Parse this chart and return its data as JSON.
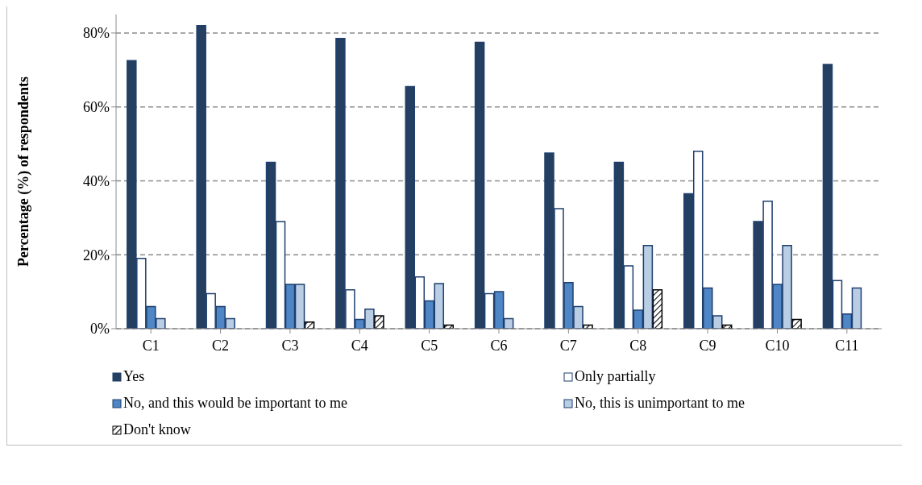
{
  "chart_data": {
    "type": "bar",
    "ylabel": "Percentage (%) of respondents",
    "categories": [
      "C1",
      "C2",
      "C3",
      "C4",
      "C5",
      "C6",
      "C7",
      "C8",
      "C9",
      "C10",
      "C11"
    ],
    "series": [
      {
        "name": "Yes",
        "color": "#243f60",
        "values": [
          72.5,
          82,
          45,
          78.5,
          65.5,
          77.5,
          47.5,
          45,
          36.5,
          29,
          71.5
        ]
      },
      {
        "name": "Only partially",
        "color": "#ffffff",
        "values": [
          19,
          9.5,
          29,
          10.5,
          14,
          9.5,
          32.5,
          17,
          48,
          34.5,
          13
        ]
      },
      {
        "name": "No, and this would be important to me",
        "color": "#4f86c6",
        "values": [
          6,
          6,
          12,
          2.5,
          7.5,
          10,
          12.5,
          5,
          11,
          12,
          4
        ]
      },
      {
        "name": "No, this is unimportant to me",
        "color": "#b9cde5",
        "values": [
          2.7,
          2.7,
          12,
          5.3,
          12.2,
          2.7,
          6,
          22.5,
          3.5,
          22.5,
          11
        ]
      },
      {
        "name": "Don't know",
        "color": "#000000",
        "values": [
          0,
          0,
          1.8,
          3.5,
          1,
          0,
          1,
          10.5,
          1,
          2.5,
          0
        ]
      }
    ],
    "ylim": [
      0,
      85
    ],
    "yticks": [
      {
        "value": 0,
        "label": "0%"
      },
      {
        "value": 20,
        "label": "20%"
      },
      {
        "value": 40,
        "label": "40%"
      },
      {
        "value": 60,
        "label": "60%"
      },
      {
        "value": 80,
        "label": "80%"
      }
    ],
    "grid": "y",
    "legend": "bottom"
  }
}
